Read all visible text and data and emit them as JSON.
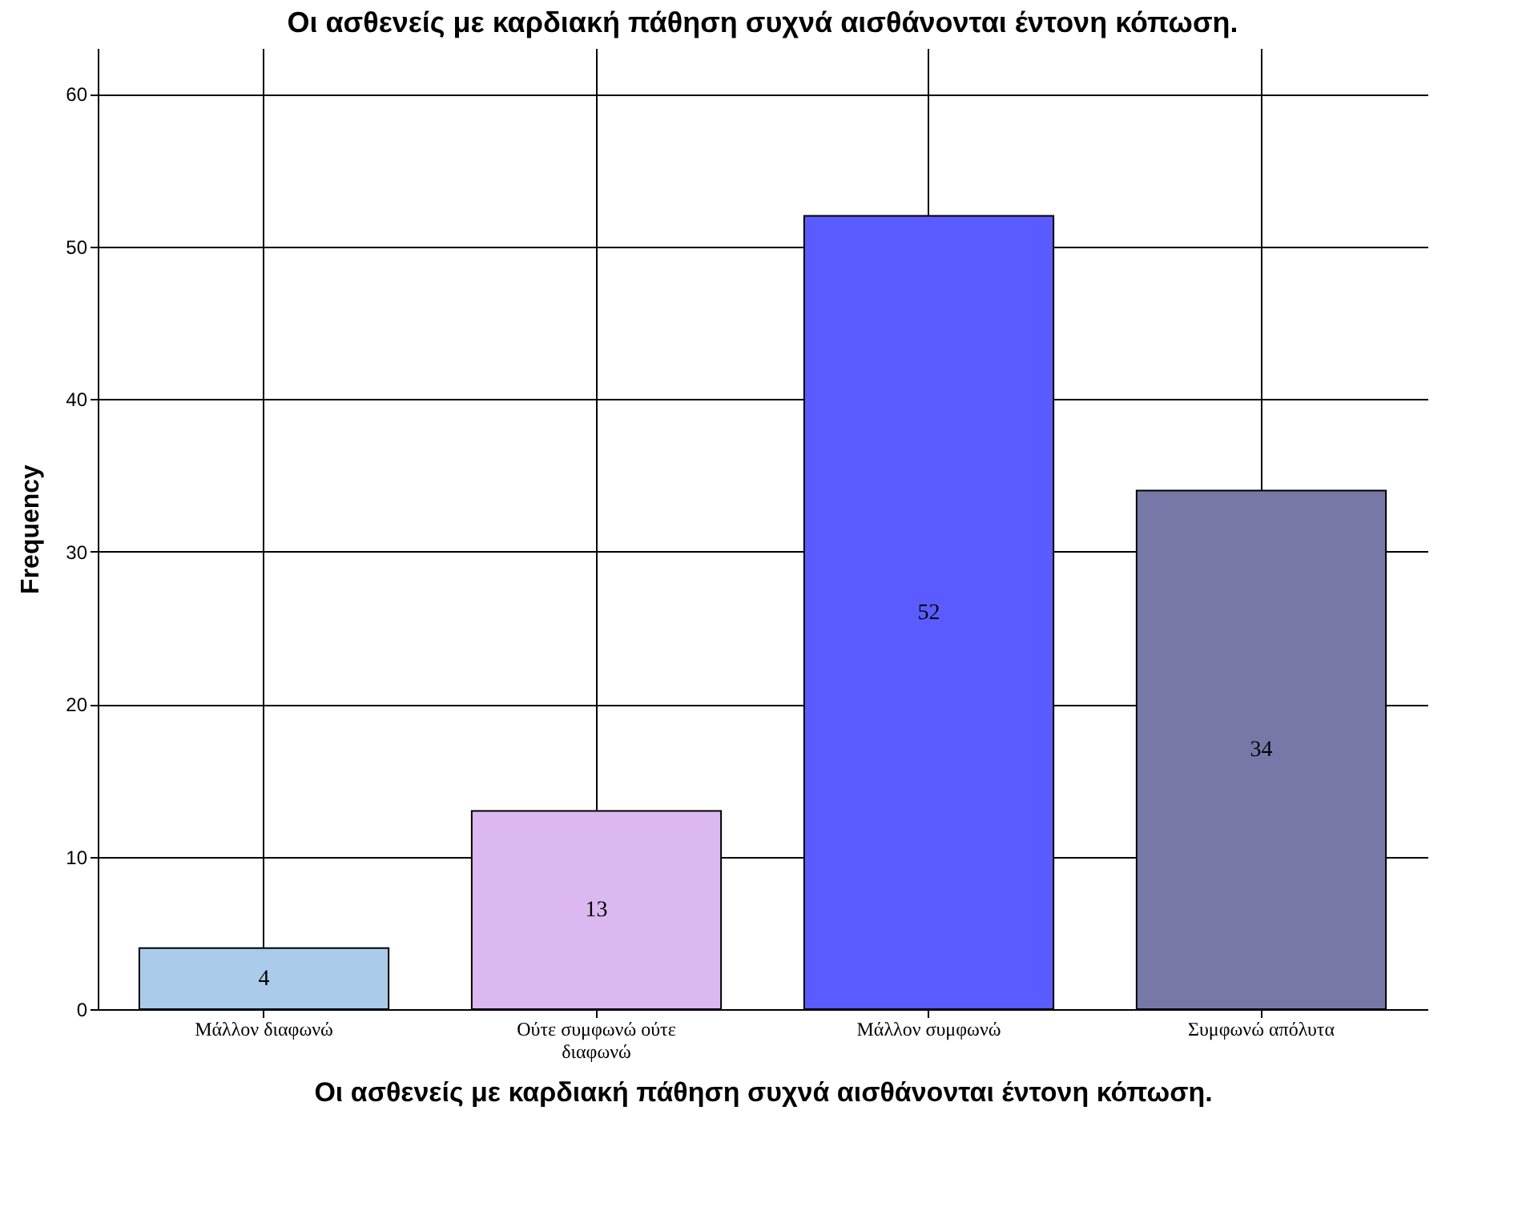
{
  "chart_data": {
    "type": "bar",
    "title": "Οι ασθενείς με καρδιακή πάθηση συχνά αισθάνονται έντονη κόπωση.",
    "xlabel": "Οι ασθενείς με καρδιακή πάθηση συχνά αισθάνονται έντονη κόπωση.",
    "ylabel": "Frequency",
    "categories": [
      "Μάλλον διαφωνώ",
      "Ούτε συμφωνώ ούτε διαφωνώ",
      "Μάλλον συμφωνώ",
      "Συμφωνώ απόλυτα"
    ],
    "values": [
      4,
      13,
      52,
      34
    ],
    "colors": [
      "#aacbea",
      "#dbb8f0",
      "#5a5cff",
      "#7878a8"
    ],
    "ylim": [
      0,
      63
    ],
    "yticks": [
      0,
      10,
      20,
      30,
      40,
      50,
      60
    ],
    "grid": true,
    "data_labels": true
  }
}
